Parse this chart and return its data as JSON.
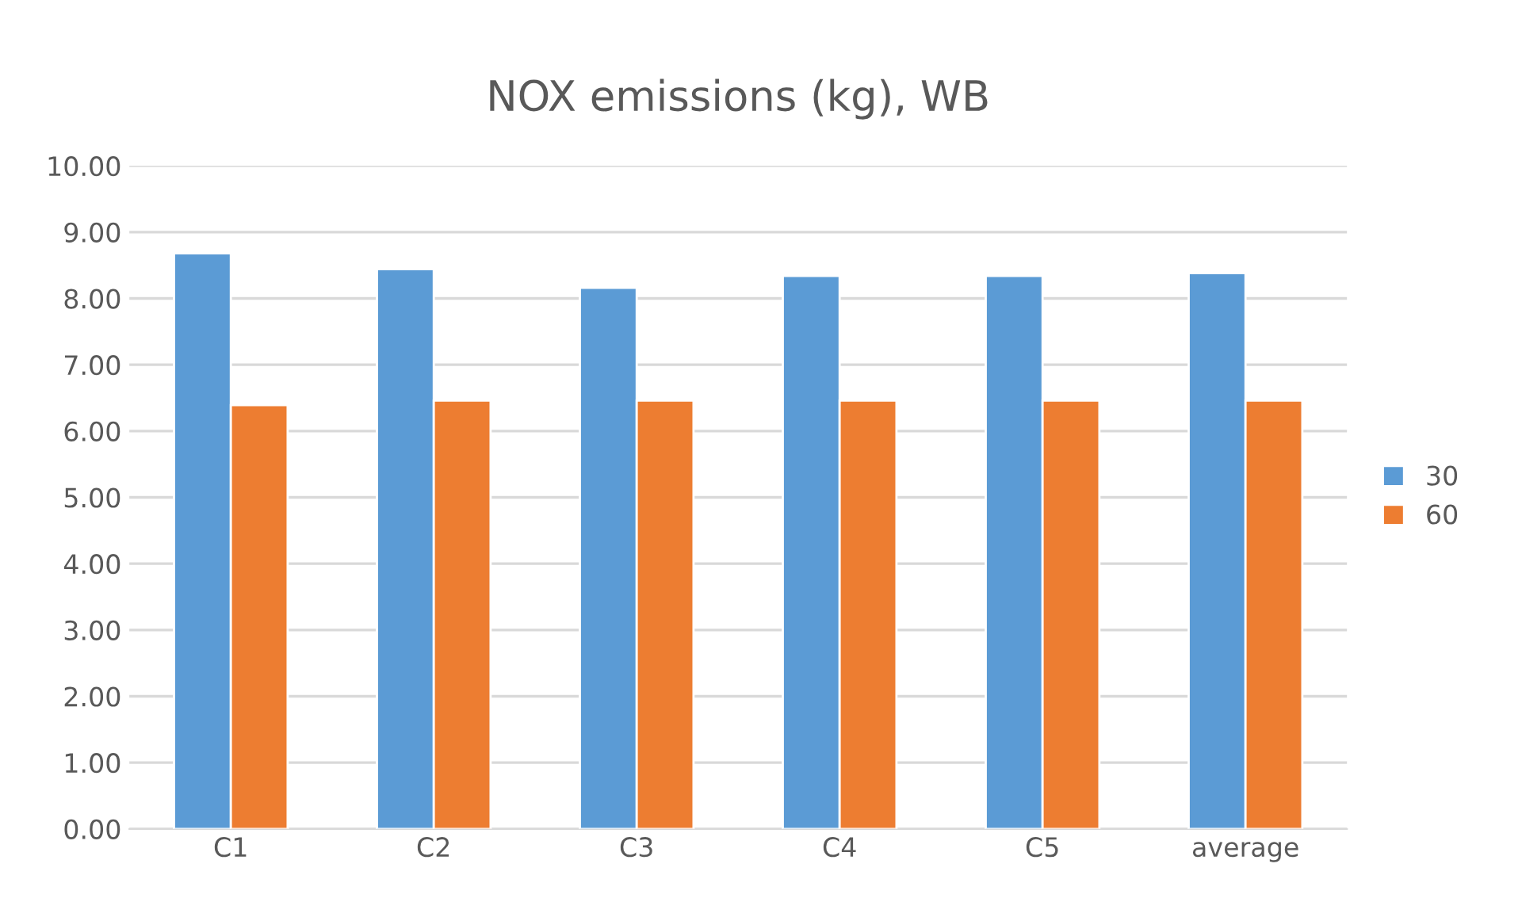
{
  "chart_data": {
    "type": "bar",
    "title": "NOX emissions (kg), WB",
    "categories": [
      "C1",
      "C2",
      "C3",
      "C4",
      "C5",
      "average"
    ],
    "series": [
      {
        "name": "30",
        "color": "#5b9bd5",
        "values": [
          8.68,
          8.44,
          8.16,
          8.34,
          8.34,
          8.38
        ]
      },
      {
        "name": "60",
        "color": "#ed7d31",
        "values": [
          6.39,
          6.46,
          6.46,
          6.46,
          6.46,
          6.46
        ]
      }
    ],
    "ylim": [
      0,
      10
    ],
    "yticks": [
      {
        "value": 0,
        "label": "0.00"
      },
      {
        "value": 1,
        "label": "1.00"
      },
      {
        "value": 2,
        "label": "2.00"
      },
      {
        "value": 3,
        "label": "3.00"
      },
      {
        "value": 4,
        "label": "4.00"
      },
      {
        "value": 5,
        "label": "5.00"
      },
      {
        "value": 6,
        "label": "6.00"
      },
      {
        "value": 7,
        "label": "7.00"
      },
      {
        "value": 8,
        "label": "8.00"
      },
      {
        "value": 9,
        "label": "9.00"
      },
      {
        "value": 10,
        "label": "10.00"
      }
    ],
    "grid": "y",
    "legend": "right"
  }
}
